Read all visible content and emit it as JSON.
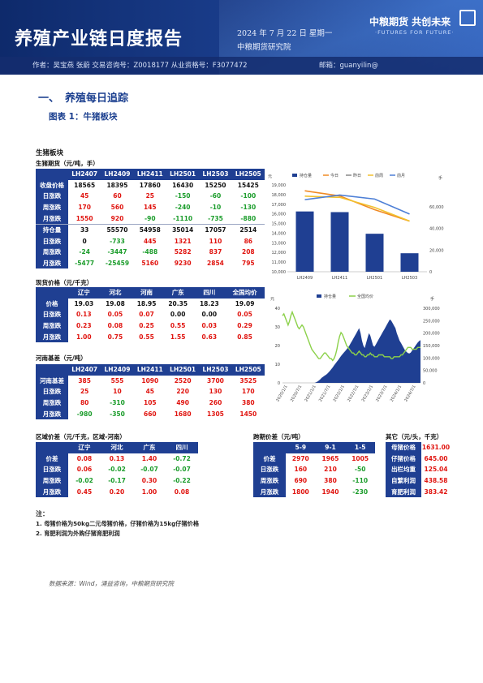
{
  "header": {
    "title": "养殖产业链日度报告",
    "date": "2024 年 7 月 22 日 星期一",
    "org": "中粮期货研究院",
    "logo_cn": "中粮期货  共创未来",
    "logo_en": "·FUTURES FOR FUTURE·",
    "authors": "作者：吴宝燕  张蔚  交易咨询号：Z0018177 从业资格号：F3077472",
    "email": "邮箱：guanyilin@"
  },
  "section": {
    "number": "一、",
    "title": "养殖每日追踪"
  },
  "figure_title": "图表 1：牛猪板块",
  "panel_title": "生猪板块",
  "futures": {
    "caption": "生猪期货（元/吨，手）",
    "headers": [
      "",
      "LH2407",
      "LH2409",
      "LH2411",
      "LH2501",
      "LH2503",
      "LH2505"
    ],
    "rows": [
      {
        "label": "收盘价格",
        "values": [
          "18565",
          "18395",
          "17860",
          "16430",
          "15250",
          "15425"
        ],
        "cls": [
          "blk",
          "blk",
          "blk",
          "blk",
          "blk",
          "blk"
        ]
      },
      {
        "label": "日涨跌",
        "values": [
          "45",
          "60",
          "25",
          "-150",
          "-60",
          "-100"
        ],
        "cls": [
          "red",
          "red",
          "red",
          "grn",
          "grn",
          "grn"
        ]
      },
      {
        "label": "周涨跌",
        "values": [
          "170",
          "560",
          "145",
          "-240",
          "-10",
          "-130"
        ],
        "cls": [
          "red",
          "red",
          "red",
          "grn",
          "grn",
          "grn"
        ]
      },
      {
        "label": "月涨跌",
        "values": [
          "1550",
          "920",
          "-90",
          "-1110",
          "-735",
          "-880"
        ],
        "cls": [
          "red",
          "red",
          "grn",
          "grn",
          "grn",
          "grn"
        ]
      },
      {
        "label": "持仓量",
        "values": [
          "33",
          "55570",
          "54958",
          "35014",
          "17057",
          "2514"
        ],
        "cls": [
          "blk",
          "blk",
          "blk",
          "blk",
          "blk",
          "blk"
        ],
        "sep": true
      },
      {
        "label": "日涨跌",
        "values": [
          "0",
          "-733",
          "445",
          "1321",
          "110",
          "86"
        ],
        "cls": [
          "blk",
          "grn",
          "red",
          "red",
          "red",
          "red"
        ]
      },
      {
        "label": "周涨跌",
        "values": [
          "-24",
          "-3447",
          "-488",
          "5282",
          "837",
          "208"
        ],
        "cls": [
          "grn",
          "grn",
          "grn",
          "red",
          "red",
          "red"
        ]
      },
      {
        "label": "月涨跌",
        "values": [
          "-5477",
          "-25459",
          "5160",
          "9230",
          "2854",
          "795"
        ],
        "cls": [
          "grn",
          "grn",
          "red",
          "red",
          "red",
          "red"
        ]
      }
    ]
  },
  "spot": {
    "caption": "现货价格（元/千克）",
    "headers": [
      "",
      "辽宁",
      "河北",
      "河南",
      "广东",
      "四川",
      "全国均价"
    ],
    "rows": [
      {
        "label": "价格",
        "values": [
          "19.03",
          "19.08",
          "18.95",
          "20.35",
          "18.23",
          "19.09"
        ],
        "cls": [
          "blk",
          "blk",
          "blk",
          "blk",
          "blk",
          "blk"
        ]
      },
      {
        "label": "日涨跌",
        "values": [
          "0.13",
          "0.05",
          "0.07",
          "0.00",
          "0.00",
          "0.05"
        ],
        "cls": [
          "red",
          "red",
          "red",
          "blk",
          "blk",
          "red"
        ]
      },
      {
        "label": "周涨跌",
        "values": [
          "0.23",
          "0.08",
          "0.25",
          "0.55",
          "0.03",
          "0.29"
        ],
        "cls": [
          "red",
          "red",
          "red",
          "red",
          "red",
          "red"
        ]
      },
      {
        "label": "月涨跌",
        "values": [
          "1.00",
          "0.75",
          "0.55",
          "1.55",
          "0.63",
          "0.85"
        ],
        "cls": [
          "red",
          "red",
          "red",
          "red",
          "red",
          "red"
        ]
      }
    ]
  },
  "basis": {
    "caption": "河南基差（元/吨）",
    "headers": [
      "",
      "LH2407",
      "LH2409",
      "LH2411",
      "LH2501",
      "LH2503",
      "LH2505"
    ],
    "rows": [
      {
        "label": "河南基差",
        "values": [
          "385",
          "555",
          "1090",
          "2520",
          "3700",
          "3525"
        ],
        "cls": [
          "red",
          "red",
          "red",
          "red",
          "red",
          "red"
        ]
      },
      {
        "label": "日涨跌",
        "values": [
          "25",
          "10",
          "45",
          "220",
          "130",
          "170"
        ],
        "cls": [
          "red",
          "red",
          "red",
          "red",
          "red",
          "red"
        ]
      },
      {
        "label": "周涨跌",
        "values": [
          "80",
          "-310",
          "105",
          "490",
          "260",
          "380"
        ],
        "cls": [
          "red",
          "grn",
          "red",
          "red",
          "red",
          "red"
        ]
      },
      {
        "label": "月涨跌",
        "values": [
          "-980",
          "-350",
          "660",
          "1680",
          "1305",
          "1450"
        ],
        "cls": [
          "grn",
          "grn",
          "red",
          "red",
          "red",
          "red"
        ]
      }
    ]
  },
  "regional": {
    "caption": "区域价差（元/千克，区域-河南）",
    "headers": [
      "",
      "辽宁",
      "河北",
      "广东",
      "四川"
    ],
    "rows": [
      {
        "label": "价差",
        "values": [
          "0.08",
          "0.13",
          "1.40",
          "-0.72"
        ],
        "cls": [
          "red",
          "red",
          "red",
          "grn"
        ]
      },
      {
        "label": "日涨跌",
        "values": [
          "0.06",
          "-0.02",
          "-0.07",
          "-0.07"
        ],
        "cls": [
          "red",
          "grn",
          "grn",
          "grn"
        ]
      },
      {
        "label": "周涨跌",
        "values": [
          "-0.02",
          "-0.17",
          "0.30",
          "-0.22"
        ],
        "cls": [
          "grn",
          "grn",
          "red",
          "grn"
        ]
      },
      {
        "label": "月涨跌",
        "values": [
          "0.45",
          "0.20",
          "1.00",
          "0.08"
        ],
        "cls": [
          "red",
          "red",
          "red",
          "red"
        ]
      }
    ]
  },
  "calendar": {
    "caption": "跨期价差（元/吨）",
    "headers": [
      "",
      "5-9",
      "9-1",
      "1-5"
    ],
    "rows": [
      {
        "label": "价差",
        "values": [
          "2970",
          "1965",
          "1005"
        ],
        "cls": [
          "red",
          "red",
          "red"
        ]
      },
      {
        "label": "日涨跌",
        "values": [
          "160",
          "210",
          "-50"
        ],
        "cls": [
          "red",
          "red",
          "grn"
        ]
      },
      {
        "label": "周涨跌",
        "values": [
          "690",
          "380",
          "-110"
        ],
        "cls": [
          "red",
          "red",
          "grn"
        ]
      },
      {
        "label": "月涨跌",
        "values": [
          "1800",
          "1940",
          "-230"
        ],
        "cls": [
          "red",
          "red",
          "grn"
        ]
      }
    ]
  },
  "other": {
    "caption": "其它（元/头，千克）",
    "rows": [
      {
        "label": "母猪价格",
        "value": "1631.00"
      },
      {
        "label": "仔猪价格",
        "value": "645.00"
      },
      {
        "label": "出栏均重",
        "value": "125.04"
      },
      {
        "label": "自繁利润",
        "value": "438.58"
      },
      {
        "label": "育肥利润",
        "value": "383.42"
      }
    ]
  },
  "notes": {
    "title": "注：",
    "items": [
      "1. 母猪价格为50kg二元母猪价格，仔猪价格为15kg仔猪价格",
      "2. 育肥利润为外购仔猪育肥利润"
    ]
  },
  "source": "数据来源：Wind，涌益咨询，中粮期货研究院",
  "colors": {
    "navy": "#1f3f92",
    "red": "#e0140f",
    "green": "#1a9c2a",
    "orange": "#f08a24",
    "gold": "#f2c12e",
    "blue_line": "#4d7fd6",
    "bar": "#1f3f92",
    "green_line": "#8cd14a"
  },
  "chart_data": [
    {
      "type": "bar",
      "legend": [
        "持仓量",
        "今日",
        "昨日",
        "前周",
        "前月"
      ],
      "y_right_label": "手",
      "categories": [
        "LH2409",
        "LH2411",
        "LH2501",
        "LH2503"
      ],
      "xticks": [
        "LH2409",
        "LH2411",
        "LH2501",
        "LH2503"
      ],
      "ylim_left": [
        10000,
        19000
      ],
      "ylim_right": [
        0,
        80000
      ],
      "yticks_left": [
        "10,000",
        "11,000",
        "12,000",
        "13,000",
        "14,000",
        "15,000",
        "16,000",
        "17,000",
        "18,000",
        "19,000"
      ],
      "yticks_right": [
        "0",
        "20,000",
        "40,000",
        "60,000"
      ],
      "series": [
        {
          "name": "持仓量",
          "kind": "bar",
          "axis": "right",
          "values": [
            55570,
            54958,
            35014,
            17057
          ]
        },
        {
          "name": "今日",
          "kind": "line",
          "axis": "left",
          "values": [
            18395,
            17860,
            16430,
            15250
          ]
        },
        {
          "name": "前周",
          "kind": "line",
          "axis": "left",
          "values": [
            17835,
            17715,
            16670,
            15260
          ]
        },
        {
          "name": "前月",
          "kind": "line",
          "axis": "left",
          "values": [
            17475,
            17950,
            17540,
            15985
          ]
        }
      ]
    },
    {
      "type": "area",
      "legend": [
        "持仓量",
        "全国均价"
      ],
      "y_left_label": "元",
      "y_right_label": "手",
      "xticks": [
        "2020/1/1",
        "2020/7/1",
        "2021/1/1",
        "2021/7/1",
        "2022/1/1",
        "2022/7/1",
        "2023/1/1",
        "2023/7/1",
        "2024/1/1",
        "2024/7/1"
      ],
      "ylim_left": [
        0,
        40
      ],
      "ylim_right": [
        0,
        300000
      ],
      "yticks_left": [
        "0",
        "10",
        "20",
        "30",
        "40"
      ],
      "yticks_right": [
        "0",
        "50,000",
        "100,000",
        "150,000",
        "200,000",
        "250,000",
        "300,000"
      ],
      "open_interest": [
        0,
        0,
        0,
        0,
        0,
        0,
        0,
        0,
        0,
        0,
        0,
        0,
        0,
        0,
        0,
        0,
        0,
        0,
        0,
        0,
        0,
        0,
        0,
        0,
        2000,
        5000,
        9000,
        14000,
        20000,
        24000,
        28000,
        32000,
        36000,
        42000,
        48000,
        55000,
        62000,
        70000,
        78000,
        85000,
        92000,
        100000,
        108000,
        115000,
        122000,
        128000,
        135000,
        142000,
        150000,
        160000,
        170000,
        180000,
        190000,
        200000,
        210000,
        220000,
        200000,
        170000,
        150000,
        140000,
        160000,
        180000,
        200000,
        190000,
        170000,
        150000,
        145000,
        155000,
        165000,
        175000,
        185000,
        195000,
        205000,
        215000,
        225000,
        235000,
        245000,
        255000,
        250000,
        240000,
        230000,
        220000,
        200000,
        185000,
        170000,
        160000,
        150000,
        140000,
        130000,
        125000,
        120000,
        118000,
        122000,
        130000,
        138000,
        146000,
        154000,
        162000,
        168000,
        172000
      ],
      "avg_price": [
        36,
        37,
        35,
        33,
        31,
        33,
        36,
        38,
        36,
        34,
        32,
        30,
        29,
        30,
        31,
        30,
        28,
        26,
        24,
        22,
        20,
        18,
        17,
        16,
        15,
        14,
        13,
        13,
        14,
        15,
        16,
        16,
        15,
        14,
        13,
        13,
        12,
        13,
        15,
        18,
        22,
        25,
        27,
        26,
        24,
        22,
        20,
        19,
        18,
        17,
        16,
        16,
        15,
        15,
        16,
        17,
        16,
        15,
        15,
        14,
        14,
        15,
        15,
        16,
        15,
        15,
        14,
        14,
        14,
        15,
        15,
        15,
        15,
        14,
        14,
        14,
        14,
        14,
        13,
        13,
        14,
        14,
        14,
        14,
        14,
        15,
        15,
        16,
        17,
        18,
        19,
        19,
        19,
        18,
        18,
        18,
        18,
        19,
        19,
        19
      ]
    }
  ]
}
